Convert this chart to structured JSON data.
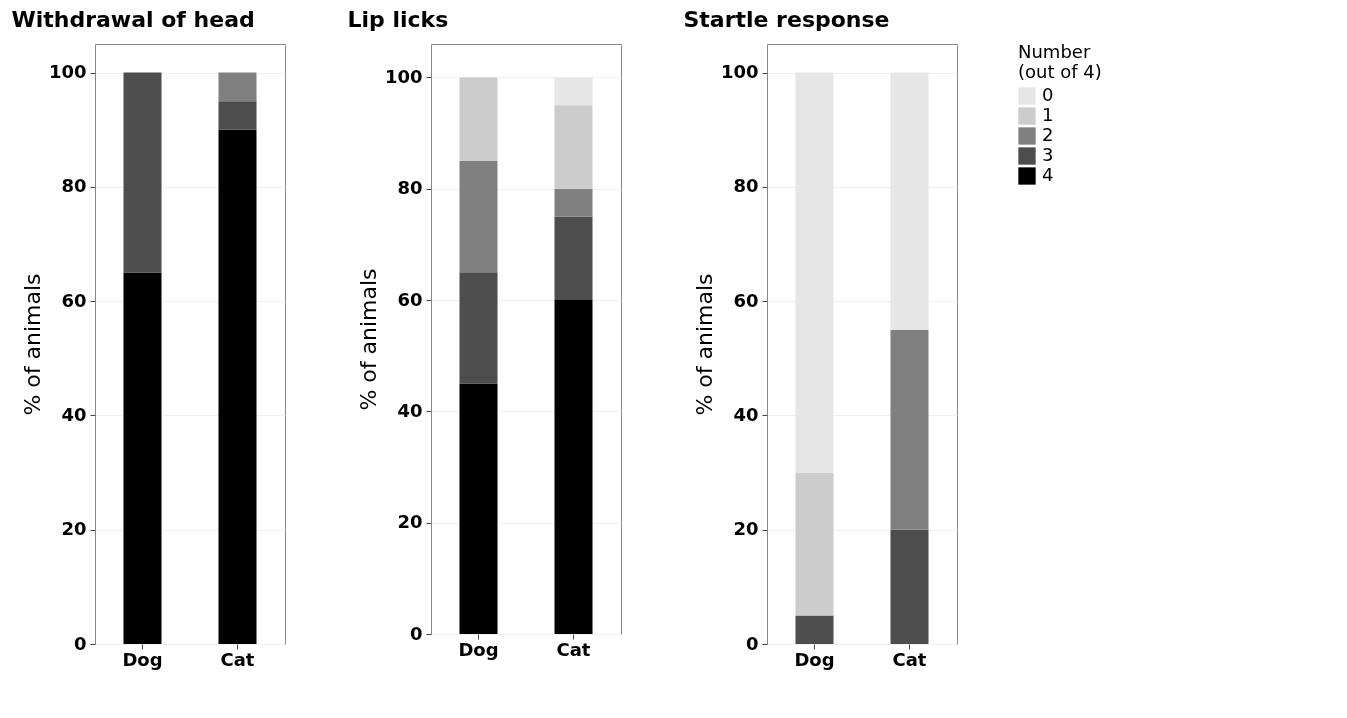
{
  "chart_data": [
    {
      "type": "bar",
      "title": "Withdrawal of head",
      "ylabel": "% of animals",
      "categories": [
        "Dog",
        "Cat"
      ],
      "stacked": true,
      "ylim": [
        0,
        105
      ],
      "yticks": [
        0,
        20,
        40,
        60,
        80,
        100
      ],
      "grid": "y",
      "legend": "right",
      "series": [
        {
          "name": "4",
          "color": "#000000",
          "values": [
            65,
            90
          ]
        },
        {
          "name": "3",
          "color": "#4d4d4d",
          "values": [
            35,
            5
          ]
        },
        {
          "name": "2",
          "color": "#808080",
          "values": [
            null,
            5
          ]
        }
      ]
    },
    {
      "type": "bar",
      "title": "Lip licks",
      "ylabel": "% of animals",
      "categories": [
        "Dog",
        "Cat"
      ],
      "stacked": true,
      "ylim": [
        0,
        106
      ],
      "yticks": [
        0,
        20,
        40,
        60,
        80,
        100
      ],
      "grid": "y",
      "legend": "right",
      "series": [
        {
          "name": "4",
          "color": "#000000",
          "values": [
            45,
            60
          ]
        },
        {
          "name": "3",
          "color": "#4d4d4d",
          "values": [
            20,
            15
          ]
        },
        {
          "name": "2",
          "color": "#808080",
          "values": [
            20,
            5
          ]
        },
        {
          "name": "1",
          "color": "#cccccc",
          "values": [
            15,
            15
          ]
        },
        {
          "name": "0",
          "color": "#e6e6e6",
          "values": [
            null,
            5
          ]
        }
      ]
    },
    {
      "type": "bar",
      "title": "Startle response",
      "ylabel": "% of animals",
      "categories": [
        "Dog",
        "Cat"
      ],
      "stacked": true,
      "ylim": [
        0,
        105
      ],
      "yticks": [
        0,
        20,
        40,
        60,
        80,
        100
      ],
      "grid": "y",
      "legend": "right",
      "legend_title": "Number\n(out of 4)",
      "series": [
        {
          "name": "4",
          "color": "#000000",
          "values": [
            null,
            null
          ]
        },
        {
          "name": "3",
          "color": "#4d4d4d",
          "values": [
            5,
            20
          ]
        },
        {
          "name": "2",
          "color": "#808080",
          "values": [
            null,
            35
          ]
        },
        {
          "name": "1",
          "color": "#cccccc",
          "values": [
            25,
            null
          ]
        },
        {
          "name": "0",
          "color": "#e6e6e6",
          "values": [
            70,
            45
          ]
        }
      ]
    }
  ]
}
